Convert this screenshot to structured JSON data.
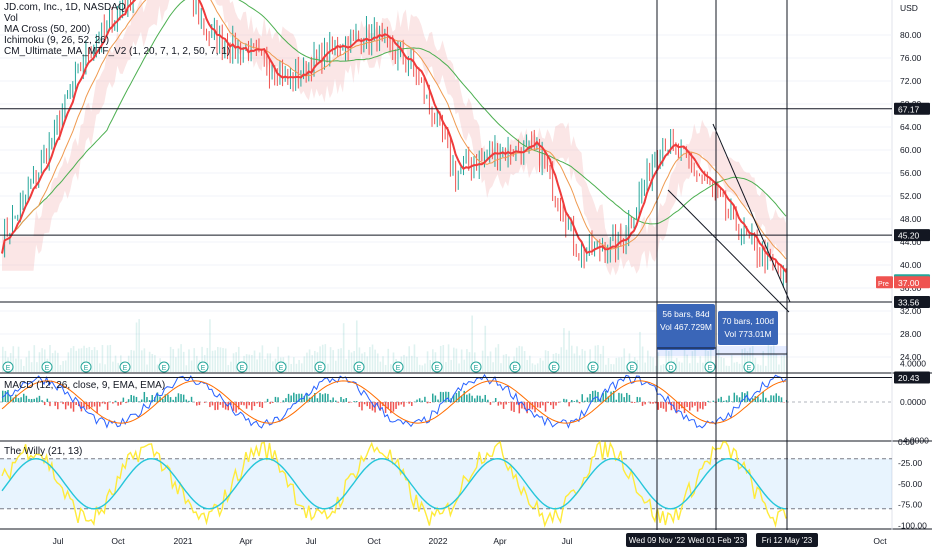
{
  "legend": {
    "title": "JD.com, Inc., 1D, NASDAQ",
    "vol": "Vol",
    "ma_cross": "MA Cross (50, 200)",
    "ichimoku": "Ichimoku (9, 26, 52, 26)",
    "cm_ultimate": "CM_Ultimate_MA_MTF_V2 (1, 20, 7, 1, 2, 50, 7, 1)",
    "macd": "MACD (12, 26, close, 9, EMA, EMA)",
    "willy": "The Willy (21, 13)"
  },
  "price_axis": {
    "currency": "USD",
    "ticks": [
      "80.00",
      "76.00",
      "72.00",
      "68.00",
      "64.00",
      "60.00",
      "56.00",
      "52.00",
      "48.00",
      "44.00",
      "40.00",
      "36.00",
      "32.00",
      "28.00",
      "24.00"
    ],
    "badges": [
      {
        "text": "67.17",
        "color": "#131722"
      },
      {
        "text": "45.20",
        "color": "#131722"
      },
      {
        "text": "37.34",
        "color": "#26a69a"
      },
      {
        "text": "37.00",
        "color": "#ef5350",
        "prefix": "Pre"
      },
      {
        "text": "33.56",
        "color": "#131722"
      },
      {
        "text": "20.43",
        "color": "#131722"
      }
    ]
  },
  "macd_axis": {
    "ticks": [
      "4.0000",
      "0.0000",
      "-4.0000"
    ]
  },
  "willy_axis": {
    "ticks": [
      "0.00",
      "-25.00",
      "-50.00",
      "-75.00",
      "-100.00"
    ]
  },
  "time_axis": {
    "labels": [
      "Jul",
      "Oct",
      "2021",
      "Apr",
      "Jul",
      "Oct",
      "2022",
      "Apr",
      "Jul",
      "Jul",
      "Oct"
    ],
    "highlights": [
      "Wed 09 Nov '22",
      "Wed 01 Feb '23",
      "Fri 12 May '23"
    ]
  },
  "measure_boxes": [
    {
      "line1": "56 bars, 84d",
      "line2": "Vol 467.729M"
    },
    {
      "line1": "70 bars, 100d",
      "line2": "Vol 773.01M"
    }
  ],
  "event_markers": [
    "E",
    "E",
    "E",
    "E",
    "E",
    "E",
    "E",
    "E",
    "E",
    "E",
    "E",
    "E",
    "E",
    "E",
    "E",
    "E",
    "E",
    "D",
    "E",
    "E"
  ],
  "chart_data": {
    "type": "line",
    "title": "JD.com, Inc., 1D, NASDAQ",
    "price_levels": [
      67.17,
      45.2,
      37.34,
      37.0,
      33.56,
      20.43
    ],
    "last_price": 37.34,
    "premarket_price": 37.0,
    "price_ylim": [
      20,
      84
    ],
    "price_series_approx": {
      "x": [
        "2020-06",
        "2020-08",
        "2020-10",
        "2020-12",
        "2021-02",
        "2021-04",
        "2021-06",
        "2021-08",
        "2021-10",
        "2021-12",
        "2022-02",
        "2022-04",
        "2022-06",
        "2022-08",
        "2022-10",
        "2022-11",
        "2023-01",
        "2023-02",
        "2023-03",
        "2023-05"
      ],
      "values": [
        44,
        58,
        76,
        86,
        95,
        80,
        77,
        72,
        78,
        80,
        74,
        56,
        60,
        60,
        42,
        44,
        62,
        55,
        45,
        37
      ]
    },
    "macd_ylim": [
      -4,
      4
    ],
    "willy_ylim": [
      -100,
      0
    ],
    "willy_bands": [
      -20,
      -80
    ],
    "grid": true
  },
  "colors": {
    "candle_up": "#26a69a",
    "candle_down": "#ef5350",
    "ma_fast": "#ef9a50",
    "ma_slow": "#4caf50",
    "cm_ma": "#ef3b3b",
    "willy_fast": "#ffeb3b",
    "willy_slow": "#26c6da",
    "macd_line": "#2962ff",
    "signal_line": "#ff6d00"
  }
}
